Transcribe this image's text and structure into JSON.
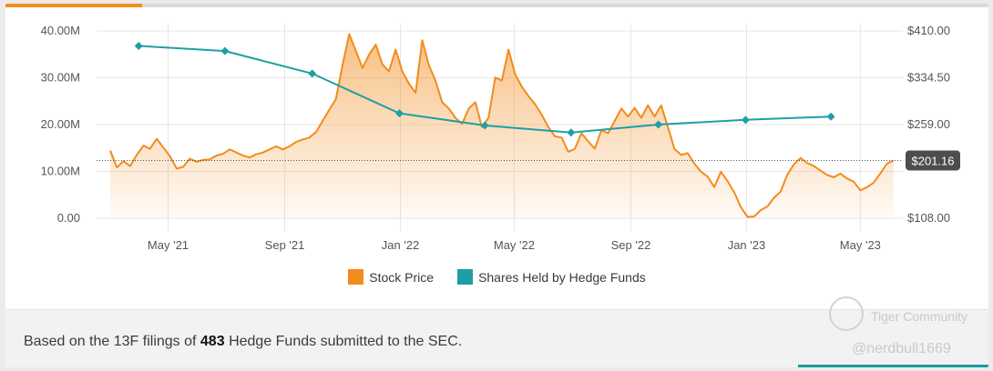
{
  "chart_data": {
    "type": "line",
    "x_ticks": [
      "May '21",
      "Sep '21",
      "Jan '22",
      "May '22",
      "Sep '22",
      "Jan '23",
      "May '23"
    ],
    "left_axis": {
      "ticks": [
        "40.00M",
        "30.00M",
        "20.00M",
        "10.00M",
        "0.00"
      ],
      "min": 0,
      "max": 40000000
    },
    "right_axis": {
      "ticks": [
        "$410.00",
        "$334.50",
        "$259.00",
        "$183.50",
        "$108.00"
      ],
      "min": 108,
      "max": 410
    },
    "series": [
      {
        "name": "Stock Price",
        "axis": "right",
        "color": "#f28c1d",
        "style": "area",
        "points": [
          [
            "2021-03-01",
            217
          ],
          [
            "2021-03-08",
            190
          ],
          [
            "2021-03-15",
            200
          ],
          [
            "2021-03-22",
            192
          ],
          [
            "2021-03-29",
            210
          ],
          [
            "2021-04-05",
            225
          ],
          [
            "2021-04-12",
            220
          ],
          [
            "2021-04-19",
            236
          ],
          [
            "2021-04-26",
            222
          ],
          [
            "2021-05-03",
            208
          ],
          [
            "2021-05-10",
            188
          ],
          [
            "2021-05-17",
            191
          ],
          [
            "2021-05-24",
            204
          ],
          [
            "2021-05-31",
            199
          ],
          [
            "2021-06-07",
            202
          ],
          [
            "2021-06-14",
            203
          ],
          [
            "2021-06-21",
            209
          ],
          [
            "2021-06-28",
            212
          ],
          [
            "2021-07-05",
            219
          ],
          [
            "2021-07-12",
            214
          ],
          [
            "2021-07-19",
            209
          ],
          [
            "2021-07-26",
            206
          ],
          [
            "2021-08-02",
            211
          ],
          [
            "2021-08-09",
            214
          ],
          [
            "2021-08-16",
            219
          ],
          [
            "2021-08-23",
            224
          ],
          [
            "2021-08-30",
            219
          ],
          [
            "2021-09-06",
            224
          ],
          [
            "2021-09-13",
            231
          ],
          [
            "2021-09-20",
            235
          ],
          [
            "2021-09-27",
            238
          ],
          [
            "2021-10-04",
            247
          ],
          [
            "2021-10-11",
            265
          ],
          [
            "2021-10-18",
            283
          ],
          [
            "2021-10-25",
            300
          ],
          [
            "2021-11-01",
            355
          ],
          [
            "2021-11-08",
            405
          ],
          [
            "2021-11-15",
            378
          ],
          [
            "2021-11-22",
            350
          ],
          [
            "2021-11-29",
            372
          ],
          [
            "2021-12-06",
            388
          ],
          [
            "2021-12-13",
            356
          ],
          [
            "2021-12-20",
            345
          ],
          [
            "2021-12-27",
            380
          ],
          [
            "2022-01-03",
            345
          ],
          [
            "2022-01-10",
            325
          ],
          [
            "2022-01-17",
            310
          ],
          [
            "2022-01-24",
            395
          ],
          [
            "2022-01-31",
            355
          ],
          [
            "2022-02-07",
            330
          ],
          [
            "2022-02-14",
            295
          ],
          [
            "2022-02-21",
            285
          ],
          [
            "2022-02-28",
            270
          ],
          [
            "2022-03-07",
            260
          ],
          [
            "2022-03-14",
            285
          ],
          [
            "2022-03-21",
            295
          ],
          [
            "2022-03-28",
            255
          ],
          [
            "2022-04-04",
            270
          ],
          [
            "2022-04-11",
            335
          ],
          [
            "2022-04-18",
            330
          ],
          [
            "2022-04-25",
            380
          ],
          [
            "2022-05-02",
            340
          ],
          [
            "2022-05-09",
            320
          ],
          [
            "2022-05-16",
            305
          ],
          [
            "2022-05-23",
            292
          ],
          [
            "2022-05-30",
            275
          ],
          [
            "2022-06-06",
            255
          ],
          [
            "2022-06-13",
            240
          ],
          [
            "2022-06-20",
            238
          ],
          [
            "2022-06-27",
            215
          ],
          [
            "2022-07-04",
            220
          ],
          [
            "2022-07-11",
            245
          ],
          [
            "2022-07-18",
            232
          ],
          [
            "2022-07-25",
            220
          ],
          [
            "2022-08-01",
            250
          ],
          [
            "2022-08-08",
            245
          ],
          [
            "2022-08-15",
            265
          ],
          [
            "2022-08-22",
            285
          ],
          [
            "2022-08-29",
            272
          ],
          [
            "2022-09-05",
            286
          ],
          [
            "2022-09-12",
            270
          ],
          [
            "2022-09-19",
            290
          ],
          [
            "2022-09-26",
            272
          ],
          [
            "2022-10-03",
            290
          ],
          [
            "2022-10-10",
            255
          ],
          [
            "2022-10-17",
            220
          ],
          [
            "2022-10-24",
            210
          ],
          [
            "2022-10-31",
            213
          ],
          [
            "2022-11-07",
            196
          ],
          [
            "2022-11-14",
            183
          ],
          [
            "2022-11-21",
            175
          ],
          [
            "2022-11-28",
            158
          ],
          [
            "2022-12-05",
            183
          ],
          [
            "2022-12-12",
            168
          ],
          [
            "2022-12-19",
            150
          ],
          [
            "2022-12-26",
            126
          ],
          [
            "2023-01-02",
            110
          ],
          [
            "2023-01-09",
            111
          ],
          [
            "2023-01-16",
            121
          ],
          [
            "2023-01-23",
            127
          ],
          [
            "2023-01-30",
            141
          ],
          [
            "2023-02-06",
            151
          ],
          [
            "2023-02-13",
            178
          ],
          [
            "2023-02-20",
            195
          ],
          [
            "2023-02-27",
            205
          ],
          [
            "2023-03-06",
            197
          ],
          [
            "2023-03-13",
            192
          ],
          [
            "2023-03-20",
            185
          ],
          [
            "2023-03-27",
            178
          ],
          [
            "2023-04-03",
            174
          ],
          [
            "2023-04-10",
            180
          ],
          [
            "2023-04-17",
            172
          ],
          [
            "2023-04-24",
            167
          ],
          [
            "2023-05-01",
            153
          ],
          [
            "2023-05-08",
            158
          ],
          [
            "2023-05-15",
            165
          ],
          [
            "2023-05-22",
            180
          ],
          [
            "2023-05-29",
            196
          ],
          [
            "2023-06-05",
            201.16
          ]
        ]
      },
      {
        "name": "Shares Held by Hedge Funds",
        "axis": "left",
        "color": "#1e9fa5",
        "style": "line-markers",
        "points": [
          [
            "2021-03-31",
            36800000
          ],
          [
            "2021-06-30",
            35700000
          ],
          [
            "2021-09-30",
            30900000
          ],
          [
            "2021-12-31",
            22400000
          ],
          [
            "2022-03-31",
            19800000
          ],
          [
            "2022-06-30",
            18300000
          ],
          [
            "2022-09-30",
            20000000
          ],
          [
            "2022-12-31",
            21000000
          ],
          [
            "2023-03-31",
            21700000
          ]
        ]
      }
    ],
    "current_price_label": "$201.16",
    "current_price": 201.16,
    "grid": true,
    "legend_position": "bottom"
  },
  "colors": {
    "price": "#f28c1d",
    "holdings": "#1e9fa5",
    "badge": "#4d4d4d"
  },
  "footer": {
    "prefix": "Based on the 13F filings of",
    "count": "483",
    "suffix": "Hedge Funds submitted to the SEC."
  },
  "watermark": {
    "brand": "Tiger Community",
    "handle": "@nerdbull1669"
  }
}
